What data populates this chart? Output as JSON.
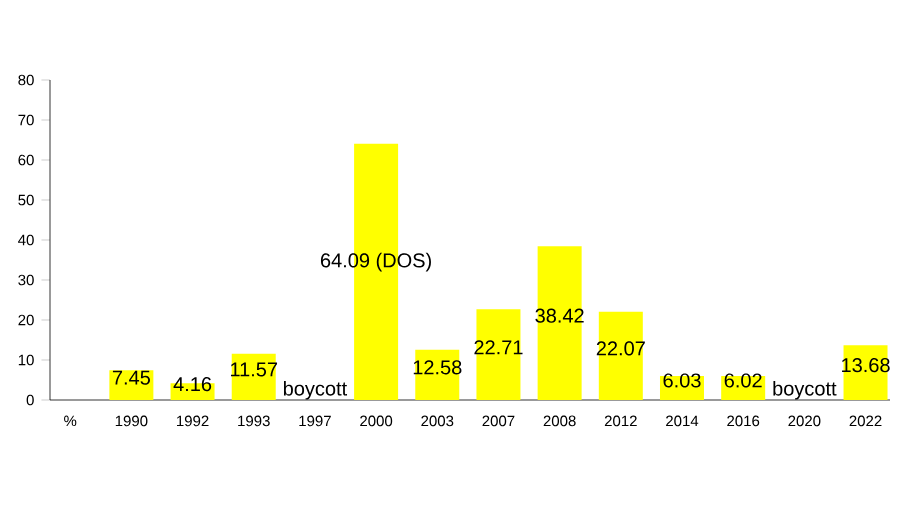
{
  "chart_data": {
    "type": "bar",
    "categories": [
      "%",
      "1990",
      "1992",
      "1993",
      "1997",
      "2000",
      "2003",
      "2007",
      "2008",
      "2012",
      "2014",
      "2016",
      "2020",
      "2022"
    ],
    "values": [
      null,
      7.45,
      4.16,
      11.57,
      null,
      64.09,
      12.58,
      22.71,
      38.42,
      22.07,
      6.03,
      6.02,
      null,
      13.68
    ],
    "value_labels": [
      null,
      "7.45",
      "4.16",
      "11.57",
      "boycott",
      "64.09 (DOS)",
      "12.58",
      "22.71",
      "38.42",
      "22.07",
      "6.03",
      "6.02",
      "boycott",
      "13.68"
    ],
    "color": "#ffff00",
    "ylim": [
      0,
      80
    ],
    "yticks": [
      0,
      10,
      20,
      30,
      40,
      50,
      60,
      70,
      80
    ],
    "grid": false
  }
}
